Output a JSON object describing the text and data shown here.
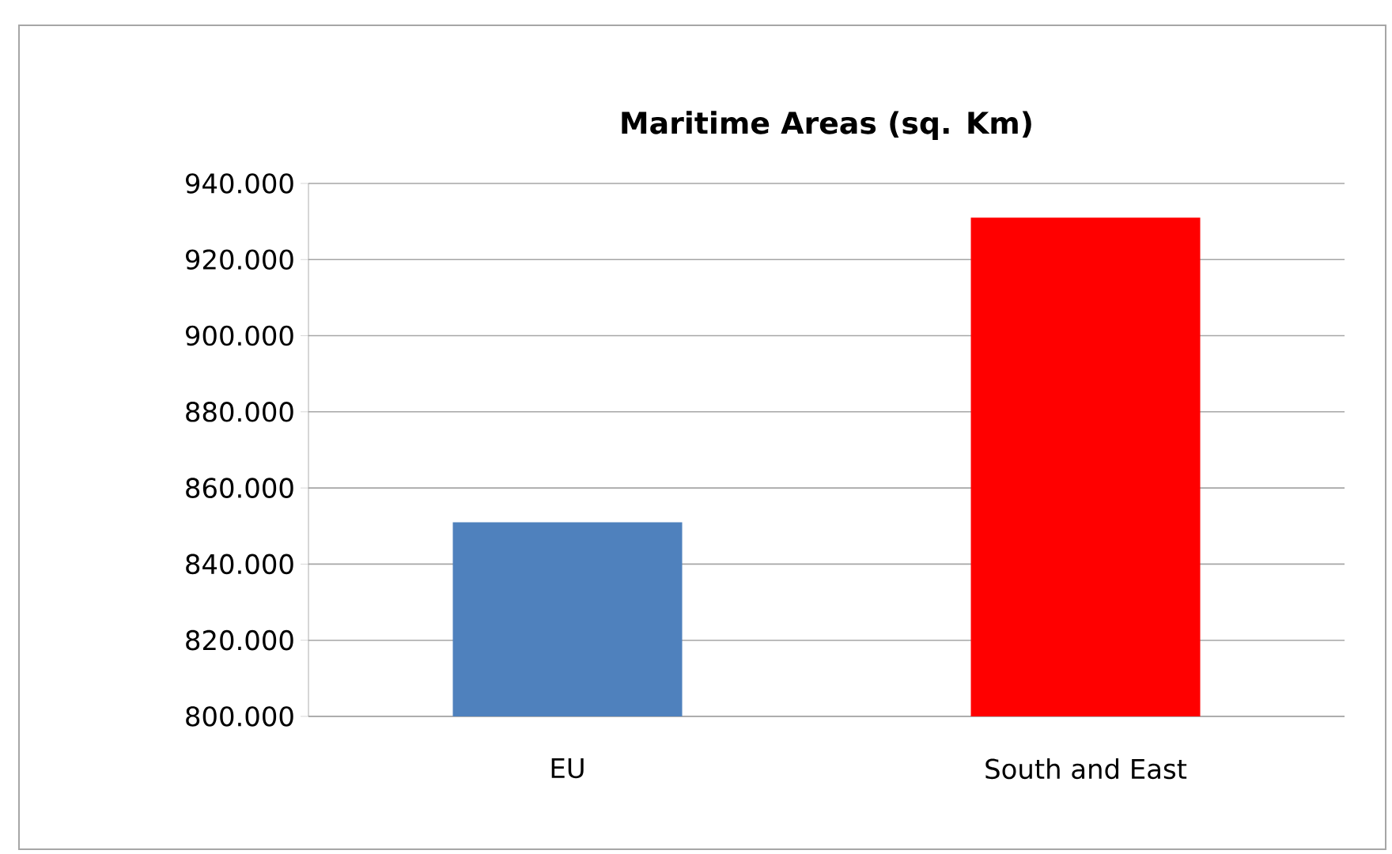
{
  "chart_data": {
    "type": "bar",
    "title": "Maritime Areas (sq. Km)",
    "categories": [
      "EU",
      "South and East"
    ],
    "values": [
      851000,
      931000
    ],
    "colors": [
      "#4f81bd",
      "#ff0000"
    ],
    "ylim": [
      800000,
      940000
    ],
    "yticks": [
      {
        "value": 800000,
        "label": "800.000"
      },
      {
        "value": 820000,
        "label": "820.000"
      },
      {
        "value": 840000,
        "label": "840.000"
      },
      {
        "value": 860000,
        "label": "860.000"
      },
      {
        "value": 880000,
        "label": "880.000"
      },
      {
        "value": 900000,
        "label": "900.000"
      },
      {
        "value": 920000,
        "label": "920.000"
      },
      {
        "value": 940000,
        "label": "940.000"
      }
    ],
    "grid": "y"
  }
}
